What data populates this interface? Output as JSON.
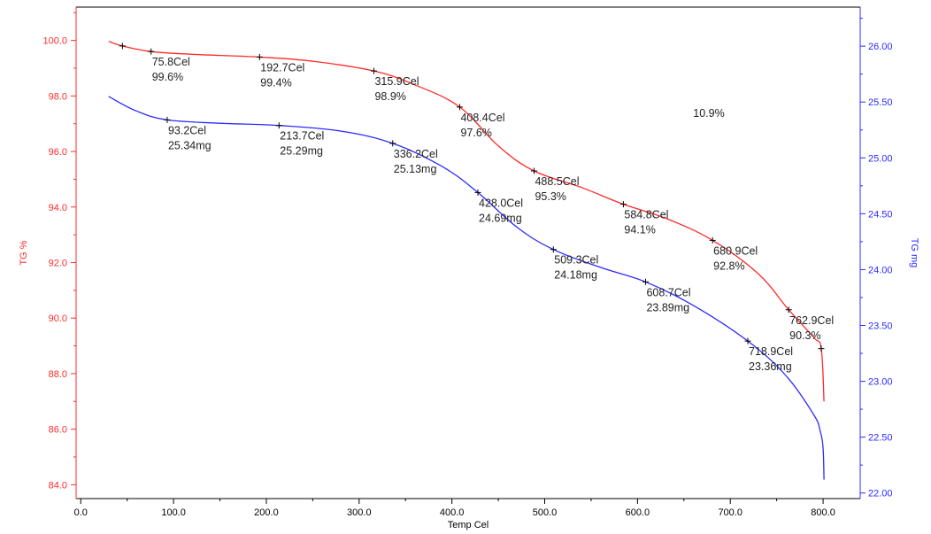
{
  "chart_data": {
    "type": "line",
    "xlabel": "Temp Cel",
    "ylabel_left": "TG %",
    "ylabel_right": "TG mg",
    "xlim": [
      -5,
      840
    ],
    "ylim_left": [
      83.5,
      101.2
    ],
    "ylim_right": [
      21.95,
      26.35
    ],
    "x_ticks": [
      0,
      100,
      200,
      300,
      400,
      500,
      600,
      700,
      800
    ],
    "x_tick_labels": [
      "0.0",
      "100.0",
      "200.0",
      "300.0",
      "400.0",
      "500.0",
      "600.0",
      "700.0",
      "800.0"
    ],
    "y_left_ticks": [
      84,
      86,
      88,
      90,
      92,
      94,
      96,
      98,
      100
    ],
    "y_left_tick_labels": [
      "84.0",
      "86.0",
      "88.0",
      "90.0",
      "92.0",
      "94.0",
      "96.0",
      "98.0",
      "100.0"
    ],
    "y_right_ticks": [
      22.0,
      22.5,
      23.0,
      23.5,
      24.0,
      24.5,
      25.0,
      25.5,
      26.0
    ],
    "y_right_tick_labels": [
      "22.00",
      "22.50",
      "23.00",
      "23.50",
      "24.00",
      "24.50",
      "25.00",
      "25.50",
      "26.00"
    ],
    "colors": {
      "tg_percent": "#ff2a2a",
      "tg_mg": "#2b2bff",
      "axis_left": "#ff2a2a",
      "axis_right": "#2b2bff"
    },
    "series": [
      {
        "axis": "left",
        "x": [
          30,
          45,
          75.8,
          120,
          192.7,
          250,
          315.9,
          360,
          408.4,
          450,
          488.5,
          540,
          584.8,
          630,
          680.9,
          730,
          762.9,
          790,
          798,
          801
        ],
        "y": [
          99.97,
          99.8,
          99.6,
          99.5,
          99.4,
          99.25,
          98.9,
          98.4,
          97.6,
          96.2,
          95.3,
          94.7,
          94.1,
          93.6,
          92.8,
          91.6,
          90.3,
          89.3,
          88.9,
          87.0
        ]
      },
      {
        "axis": "right",
        "x": [
          30,
          60,
          93.2,
          150,
          213.7,
          280,
          336.2,
          390,
          428.0,
          470,
          509.3,
          560,
          608.7,
          660,
          718.9,
          760,
          790,
          797,
          800,
          801
        ],
        "y": [
          25.55,
          25.42,
          25.34,
          25.31,
          25.29,
          25.24,
          25.13,
          24.92,
          24.69,
          24.38,
          24.18,
          24.02,
          23.89,
          23.68,
          23.36,
          23.05,
          22.7,
          22.55,
          22.4,
          22.12
        ]
      }
    ],
    "markers_left": [
      {
        "x": 45,
        "y": 99.8
      },
      {
        "x": 798,
        "y": 88.9
      }
    ],
    "annotations": [
      {
        "series": "left",
        "x": 75.8,
        "y": 99.6,
        "temp": "75.8Cel",
        "value": "99.6%"
      },
      {
        "series": "left",
        "x": 192.7,
        "y": 99.4,
        "temp": "192.7Cel",
        "value": "99.4%"
      },
      {
        "series": "left",
        "x": 315.9,
        "y": 98.9,
        "temp": "315.9Cel",
        "value": "98.9%"
      },
      {
        "series": "left",
        "x": 408.4,
        "y": 97.6,
        "temp": "408.4Cel",
        "value": "97.6%"
      },
      {
        "series": "left",
        "x": 488.5,
        "y": 95.3,
        "temp": "488.5Cel",
        "value": "95.3%"
      },
      {
        "series": "left",
        "x": 584.8,
        "y": 94.1,
        "temp": "584.8Cel",
        "value": "94.1%"
      },
      {
        "series": "left",
        "x": 680.9,
        "y": 92.8,
        "temp": "680.9Cel",
        "value": "92.8%"
      },
      {
        "series": "left",
        "x": 762.9,
        "y": 90.3,
        "temp": "762.9Cel",
        "value": "90.3%"
      },
      {
        "series": "right",
        "x": 93.2,
        "y": 25.34,
        "temp": "93.2Cel",
        "value": "25.34mg"
      },
      {
        "series": "right",
        "x": 213.7,
        "y": 25.29,
        "temp": "213.7Cel",
        "value": "25.29mg"
      },
      {
        "series": "right",
        "x": 336.2,
        "y": 25.13,
        "temp": "336.2Cel",
        "value": "25.13mg"
      },
      {
        "series": "right",
        "x": 428.0,
        "y": 24.69,
        "temp": "428.0Cel",
        "value": "24.69mg"
      },
      {
        "series": "right",
        "x": 509.3,
        "y": 24.18,
        "temp": "509.3Cel",
        "value": "24.18mg"
      },
      {
        "series": "right",
        "x": 608.7,
        "y": 23.89,
        "temp": "608.7Cel",
        "value": "23.89mg"
      },
      {
        "series": "right",
        "x": 718.9,
        "y": 23.36,
        "temp": "718.9Cel",
        "value": "23.36mg"
      }
    ],
    "free_text": {
      "text": "10.9%",
      "x": 660,
      "y_left": 97.25
    },
    "grid": false
  }
}
